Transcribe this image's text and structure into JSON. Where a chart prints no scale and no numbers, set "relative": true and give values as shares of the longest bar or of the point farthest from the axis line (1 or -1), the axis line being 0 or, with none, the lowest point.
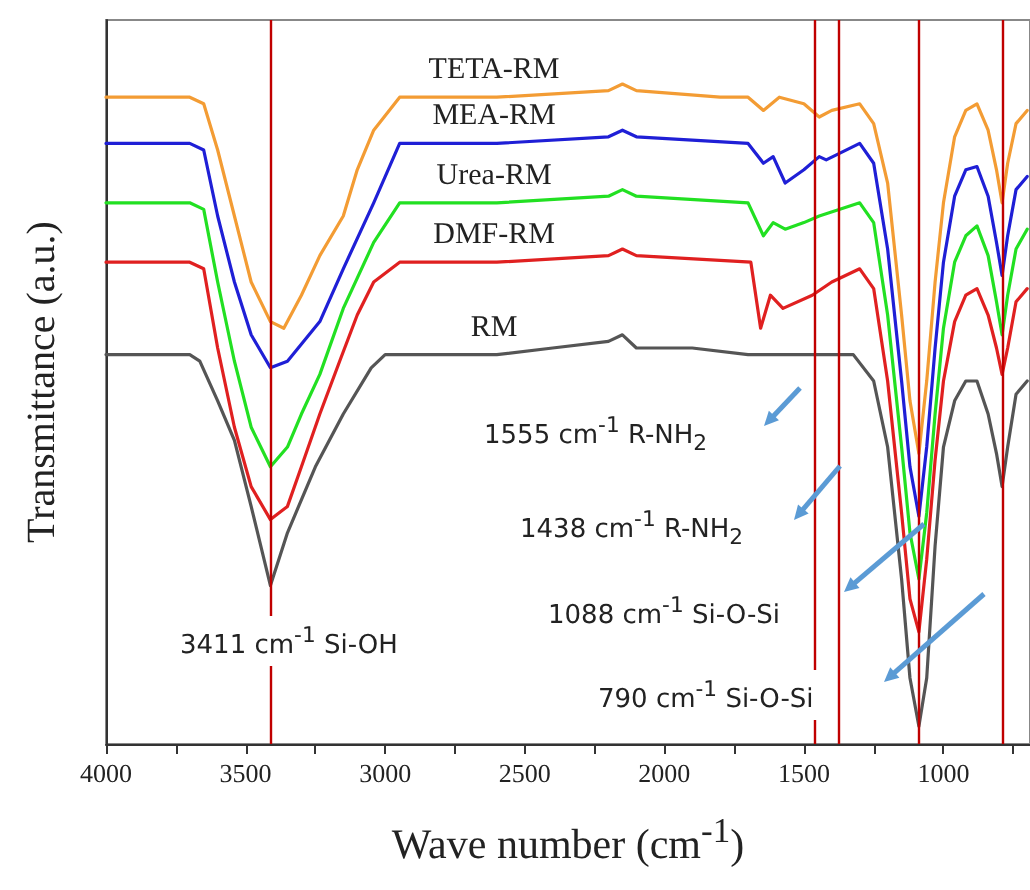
{
  "chart_data": {
    "type": "line",
    "xlabel": "Wave number (cm$^{-1}$)",
    "ylabel": "Transmittance (a.u.)",
    "relative": true,
    "marker": "none",
    "line_style": "solid",
    "xlim": [
      4000,
      690
    ],
    "xticks": [
      4000,
      {
        "value": 3750,
        "label": null
      },
      3500,
      {
        "value": 3250,
        "label": null
      },
      3000,
      {
        "value": 2750,
        "label": null
      },
      2500,
      {
        "value": 2250,
        "label": null
      },
      2000,
      {
        "value": 1750,
        "label": null
      },
      1500,
      {
        "value": 1250,
        "label": null
      },
      1000,
      {
        "value": 750,
        "label": null
      }
    ],
    "series": [
      {
        "name": "TETA-RM",
        "color": "#f39c34",
        "x": [
          4000,
          3700,
          3650,
          3600,
          3540,
          3480,
          3411,
          3363,
          3300,
          3234,
          3150,
          3100,
          3041,
          2948,
          2600,
          2200,
          2150,
          2100,
          1800,
          1700,
          1645,
          1588,
          1500,
          1445,
          1400,
          1300,
          1250,
          1200,
          1150,
          1120,
          1088,
          1060,
          1030,
          1000,
          960,
          920,
          880,
          840,
          810,
          790,
          770,
          740,
          700
        ],
        "values": [
          0.98,
          0.98,
          0.97,
          0.9,
          0.8,
          0.7,
          0.64,
          0.63,
          0.68,
          0.74,
          0.8,
          0.87,
          0.93,
          0.98,
          0.98,
          0.99,
          1.0,
          0.99,
          0.98,
          0.98,
          0.96,
          0.98,
          0.97,
          0.95,
          0.96,
          0.97,
          0.94,
          0.85,
          0.65,
          0.52,
          0.44,
          0.55,
          0.7,
          0.82,
          0.92,
          0.96,
          0.97,
          0.93,
          0.87,
          0.82,
          0.88,
          0.94,
          0.96
        ]
      },
      {
        "name": "MEA-RM",
        "color": "#1f1fd6",
        "x": [
          4000,
          3700,
          3650,
          3600,
          3540,
          3480,
          3411,
          3350,
          3234,
          3150,
          3041,
          2948,
          2600,
          2200,
          2150,
          2100,
          1700,
          1645,
          1610,
          1567,
          1500,
          1445,
          1420,
          1300,
          1250,
          1200,
          1150,
          1120,
          1088,
          1060,
          1030,
          1000,
          960,
          920,
          880,
          840,
          810,
          790,
          770,
          740,
          700
        ],
        "values": [
          0.91,
          0.91,
          0.9,
          0.8,
          0.7,
          0.62,
          0.57,
          0.58,
          0.64,
          0.72,
          0.82,
          0.91,
          0.91,
          0.92,
          0.93,
          0.92,
          0.91,
          0.88,
          0.89,
          0.85,
          0.87,
          0.89,
          0.885,
          0.91,
          0.88,
          0.75,
          0.55,
          0.42,
          0.345,
          0.45,
          0.6,
          0.73,
          0.83,
          0.87,
          0.875,
          0.83,
          0.76,
          0.71,
          0.77,
          0.84,
          0.86
        ]
      },
      {
        "name": "Urea-RM",
        "color": "#22e022",
        "x": [
          4000,
          3700,
          3650,
          3600,
          3540,
          3480,
          3411,
          3350,
          3300,
          3234,
          3150,
          3041,
          2948,
          2600,
          2200,
          2150,
          2100,
          1700,
          1645,
          1610,
          1567,
          1500,
          1445,
          1300,
          1250,
          1200,
          1150,
          1120,
          1088,
          1060,
          1030,
          1000,
          960,
          920,
          880,
          840,
          810,
          790,
          770,
          740,
          700
        ],
        "values": [
          0.82,
          0.82,
          0.81,
          0.7,
          0.58,
          0.48,
          0.42,
          0.45,
          0.5,
          0.56,
          0.66,
          0.76,
          0.82,
          0.82,
          0.83,
          0.84,
          0.83,
          0.82,
          0.77,
          0.79,
          0.78,
          0.79,
          0.8,
          0.82,
          0.79,
          0.65,
          0.45,
          0.32,
          0.25,
          0.35,
          0.5,
          0.63,
          0.73,
          0.77,
          0.785,
          0.74,
          0.67,
          0.62,
          0.68,
          0.75,
          0.78
        ]
      },
      {
        "name": "DMF-RM",
        "color": "#e02020",
        "x": [
          4000,
          3700,
          3650,
          3600,
          3540,
          3480,
          3411,
          3350,
          3300,
          3234,
          3163,
          3100,
          3041,
          2948,
          2600,
          2200,
          2150,
          2100,
          1690,
          1655,
          1620,
          1575,
          1470,
          1400,
          1300,
          1250,
          1200,
          1150,
          1120,
          1088,
          1060,
          1030,
          1000,
          960,
          920,
          880,
          840,
          810,
          790,
          770,
          740,
          700
        ],
        "values": [
          0.73,
          0.73,
          0.72,
          0.6,
          0.48,
          0.39,
          0.34,
          0.36,
          0.42,
          0.5,
          0.58,
          0.65,
          0.7,
          0.73,
          0.73,
          0.74,
          0.75,
          0.74,
          0.73,
          0.63,
          0.68,
          0.66,
          0.68,
          0.7,
          0.72,
          0.69,
          0.55,
          0.35,
          0.22,
          0.17,
          0.28,
          0.43,
          0.55,
          0.64,
          0.68,
          0.69,
          0.65,
          0.6,
          0.56,
          0.6,
          0.67,
          0.69
        ]
      },
      {
        "name": "RM",
        "color": "#555555",
        "x": [
          4000,
          3700,
          3664,
          3600,
          3540,
          3480,
          3411,
          3350,
          3250,
          3150,
          3050,
          3000,
          2800,
          2600,
          2400,
          2200,
          2150,
          2100,
          1900,
          1700,
          1500,
          1323,
          1250,
          1200,
          1150,
          1120,
          1088,
          1060,
          1030,
          1000,
          960,
          920,
          880,
          840,
          810,
          790,
          770,
          740,
          700
        ],
        "values": [
          0.59,
          0.59,
          0.58,
          0.52,
          0.46,
          0.36,
          0.24,
          0.32,
          0.42,
          0.5,
          0.57,
          0.59,
          0.59,
          0.59,
          0.6,
          0.61,
          0.62,
          0.6,
          0.6,
          0.59,
          0.59,
          0.59,
          0.55,
          0.45,
          0.25,
          0.1,
          0.027,
          0.1,
          0.3,
          0.45,
          0.52,
          0.55,
          0.55,
          0.5,
          0.44,
          0.39,
          0.45,
          0.53,
          0.55
        ]
      }
    ],
    "ref_lines": [
      {
        "axis": "x",
        "value": 3411,
        "color": "#c00000"
      },
      {
        "axis": "x",
        "value": 1465,
        "color": "#c00000"
      },
      {
        "axis": "x",
        "value": 1375,
        "color": "#c00000"
      },
      {
        "axis": "x",
        "value": 1088,
        "color": "#c00000"
      },
      {
        "axis": "x",
        "value": 790,
        "color": "#c00000"
      }
    ],
    "annotations": [
      "3411 cm$^{-1}$ Si-OH",
      "1555 cm$^{-1}$ R-NH$_{2}$",
      "1438 cm$^{-1}$ R-NH$_{2}$",
      "1088 cm$^{-1}$ Si-O-Si",
      "790 cm$^{-1}$ Si-O-Si"
    ]
  }
}
